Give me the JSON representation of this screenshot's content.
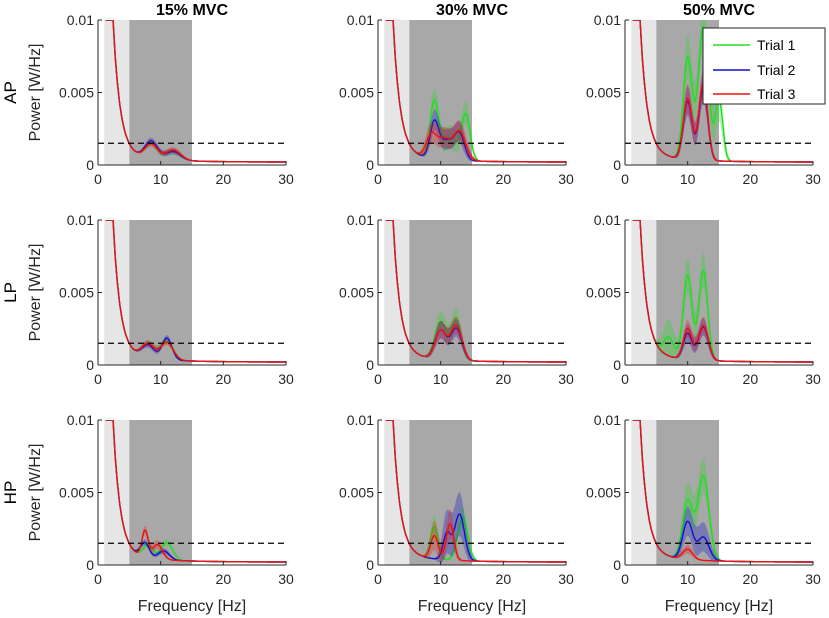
{
  "chart_data": {
    "type": "line",
    "figure": "Power spectra grid, 3 postures x 3 contraction levels",
    "columns": [
      "15% MVC",
      "30% MVC",
      "50% MVC"
    ],
    "rows": [
      "AP",
      "LP",
      "HP"
    ],
    "ylabel": "Power [W/Hz]",
    "xlabel": "Frequency [Hz]",
    "xlim": [
      0,
      30
    ],
    "ylim": [
      0,
      0.01
    ],
    "xticks": [
      "0",
      "10",
      "20",
      "30"
    ],
    "yticks": [
      "0",
      "0.005",
      "0.01"
    ],
    "light_band_hz": [
      1,
      5
    ],
    "dark_band_hz": [
      5,
      15
    ],
    "threshold_power": 0.0015,
    "legend": {
      "position": "top-right of last column, first row",
      "entries": [
        {
          "name": "Trial 1",
          "color": "#22dd22"
        },
        {
          "name": "Trial 2",
          "color": "#1010cc"
        },
        {
          "name": "Trial 3",
          "color": "#ee1111"
        }
      ]
    },
    "panels": [
      [
        {
          "peaks": [
            [
              8.5,
              1.0,
              0.001
            ],
            [
              12,
              1.2,
              0.0006
            ]
          ],
          "spread": 0.0002
        },
        {
          "peaks": [
            [
              8.5,
              1.0,
              0.0012
            ],
            [
              12,
              1.2,
              0.0006
            ]
          ],
          "spread": 0.0002
        },
        {
          "peaks": [
            [
              8.5,
              1.0,
              0.001
            ],
            [
              12,
              1.2,
              0.0007
            ]
          ],
          "spread": 0.0002
        }
      ],
      [
        {
          "peaks": [
            [
              9,
              0.7,
              0.004
            ],
            [
              14,
              0.7,
              0.0032
            ],
            [
              11.5,
              1.0,
              0.0016
            ]
          ],
          "spread": 0.0008
        },
        {
          "peaks": [
            [
              9,
              0.7,
              0.0025
            ],
            [
              13,
              0.8,
              0.0018
            ],
            [
              11,
              1.0,
              0.0013
            ]
          ],
          "spread": 0.0007
        },
        {
          "peaks": [
            [
              8.5,
              0.8,
              0.0016
            ],
            [
              13,
              1.0,
              0.002
            ],
            [
              10.5,
              1.0,
              0.0014
            ]
          ],
          "spread": 0.0007
        }
      ],
      [
        {
          "peaks": [
            [
              10,
              0.7,
              0.007
            ],
            [
              12.5,
              0.8,
              0.0092
            ],
            [
              15,
              0.6,
              0.0042
            ]
          ],
          "spread": 0.0015
        },
        {
          "peaks": [
            [
              10,
              0.7,
              0.004
            ],
            [
              12.5,
              0.7,
              0.005
            ]
          ],
          "spread": 0.001
        },
        {
          "peaks": [
            [
              10,
              0.7,
              0.0042
            ],
            [
              12.5,
              0.7,
              0.0053
            ]
          ],
          "spread": 0.001
        }
      ],
      [
        {
          "peaks": [
            [
              8,
              1.0,
              0.001
            ],
            [
              11,
              1.0,
              0.0013
            ]
          ],
          "spread": 0.0002
        },
        {
          "peaks": [
            [
              8,
              1.0,
              0.0009
            ],
            [
              11,
              0.8,
              0.0015
            ]
          ],
          "spread": 0.0002
        },
        {
          "peaks": [
            [
              8,
              1.0,
              0.001
            ],
            [
              11,
              1.0,
              0.0012
            ]
          ],
          "spread": 0.0002
        }
      ],
      [
        {
          "peaks": [
            [
              10,
              0.9,
              0.0026
            ],
            [
              12.5,
              0.8,
              0.0028
            ]
          ],
          "spread": 0.0007
        },
        {
          "peaks": [
            [
              10,
              0.9,
              0.002
            ],
            [
              12.5,
              0.9,
              0.0022
            ]
          ],
          "spread": 0.0006
        },
        {
          "peaks": [
            [
              10,
              0.9,
              0.002
            ],
            [
              12.5,
              0.9,
              0.0024
            ]
          ],
          "spread": 0.0006
        }
      ],
      [
        {
          "peaks": [
            [
              10,
              0.7,
              0.0058
            ],
            [
              12.5,
              0.7,
              0.0062
            ],
            [
              7,
              0.8,
              0.0013
            ]
          ],
          "spread": 0.0012
        },
        {
          "peaks": [
            [
              10,
              0.7,
              0.0018
            ],
            [
              12.5,
              0.8,
              0.0023
            ]
          ],
          "spread": 0.0006
        },
        {
          "peaks": [
            [
              10,
              0.7,
              0.0021
            ],
            [
              12.5,
              0.8,
              0.0024
            ]
          ],
          "spread": 0.0006
        }
      ],
      [
        {
          "peaks": [
            [
              8,
              0.8,
              0.0009
            ],
            [
              11,
              0.9,
              0.0012
            ]
          ],
          "spread": 0.0002
        },
        {
          "peaks": [
            [
              7.5,
              0.7,
              0.001
            ],
            [
              10.5,
              0.9,
              0.0006
            ]
          ],
          "spread": 0.0002
        },
        {
          "peaks": [
            [
              7.5,
              0.5,
              0.0018
            ],
            [
              9.5,
              0.8,
              0.001
            ]
          ],
          "spread": 0.0003
        }
      ],
      [
        {
          "peaks": [
            [
              9,
              0.6,
              0.0022
            ],
            [
              13.5,
              0.8,
              0.003
            ]
          ],
          "spread": 0.0008
        },
        {
          "peaks": [
            [
              11,
              0.6,
              0.0018
            ],
            [
              13,
              0.8,
              0.0032
            ]
          ],
          "spread": 0.0015
        },
        {
          "peaks": [
            [
              9,
              0.6,
              0.0016
            ],
            [
              11.5,
              0.6,
              0.0025
            ]
          ],
          "spread": 0.001
        }
      ],
      [
        {
          "peaks": [
            [
              10,
              0.8,
              0.004
            ],
            [
              12.5,
              0.9,
              0.0058
            ]
          ],
          "spread": 0.0012
        },
        {
          "peaks": [
            [
              10,
              0.8,
              0.0026
            ],
            [
              12.5,
              0.9,
              0.0016
            ]
          ],
          "spread": 0.001
        },
        {
          "peaks": [
            [
              10,
              0.8,
              0.0007
            ]
          ],
          "spread": 0.0003
        }
      ]
    ]
  }
}
